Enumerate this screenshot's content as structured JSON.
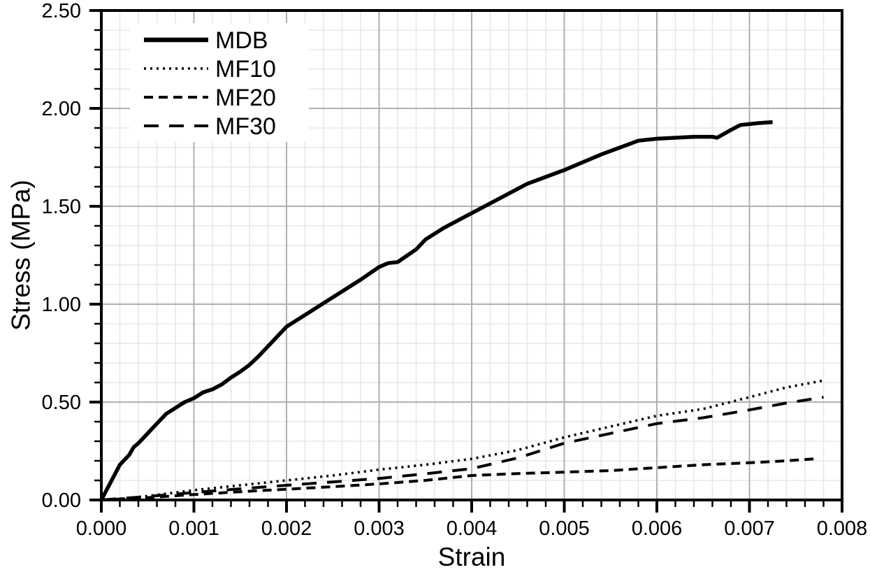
{
  "chart_data": {
    "type": "line",
    "title": "",
    "xlabel": "Strain",
    "ylabel": "Stress (MPa)",
    "xlim": [
      0,
      0.008
    ],
    "ylim": [
      0,
      2.5
    ],
    "x_ticks": [
      {
        "value": 0.0,
        "label": "0.000"
      },
      {
        "value": 0.001,
        "label": "0.001"
      },
      {
        "value": 0.002,
        "label": "0.002"
      },
      {
        "value": 0.003,
        "label": "0.003"
      },
      {
        "value": 0.004,
        "label": "0.004"
      },
      {
        "value": 0.005,
        "label": "0.005"
      },
      {
        "value": 0.006,
        "label": "0.006"
      },
      {
        "value": 0.007,
        "label": "0.007"
      },
      {
        "value": 0.008,
        "label": "0.008"
      }
    ],
    "y_ticks": [
      {
        "value": 0.0,
        "label": "0.00"
      },
      {
        "value": 0.5,
        "label": "0.50"
      },
      {
        "value": 1.0,
        "label": "1.00"
      },
      {
        "value": 1.5,
        "label": "1.50"
      },
      {
        "value": 2.0,
        "label": "2.00"
      },
      {
        "value": 2.5,
        "label": "2.50"
      }
    ],
    "x_minor_step": 0.0002,
    "y_minor_step": 0.1,
    "grid": true,
    "legend": {
      "position": "upper-left-inside",
      "entries": [
        "MDB",
        "MF10",
        "MF20",
        "MF30"
      ]
    },
    "colors": {
      "series": "#000000",
      "major_grid": "#b0b0b0",
      "minor_grid": "#e7e7e7",
      "axis": "#000000",
      "text": "#000000",
      "background": "#ffffff"
    },
    "series": [
      {
        "name": "MDB",
        "line_style": "solid",
        "width": 5.5,
        "points": [
          [
            0.0,
            0.0
          ],
          [
            0.0001,
            0.09
          ],
          [
            0.0002,
            0.18
          ],
          [
            0.0003,
            0.23
          ],
          [
            0.00035,
            0.27
          ],
          [
            0.0004,
            0.29
          ],
          [
            0.0005,
            0.34
          ],
          [
            0.0006,
            0.39
          ],
          [
            0.0007,
            0.44
          ],
          [
            0.0008,
            0.47
          ],
          [
            0.0009,
            0.5
          ],
          [
            0.001,
            0.52
          ],
          [
            0.0011,
            0.55
          ],
          [
            0.0012,
            0.565
          ],
          [
            0.0013,
            0.59
          ],
          [
            0.0014,
            0.625
          ],
          [
            0.0015,
            0.655
          ],
          [
            0.0016,
            0.69
          ],
          [
            0.0017,
            0.735
          ],
          [
            0.0018,
            0.785
          ],
          [
            0.0019,
            0.835
          ],
          [
            0.002,
            0.885
          ],
          [
            0.0022,
            0.945
          ],
          [
            0.0024,
            1.005
          ],
          [
            0.0026,
            1.065
          ],
          [
            0.0028,
            1.125
          ],
          [
            0.003,
            1.19
          ],
          [
            0.0031,
            1.21
          ],
          [
            0.0032,
            1.215
          ],
          [
            0.0034,
            1.28
          ],
          [
            0.0035,
            1.33
          ],
          [
            0.0037,
            1.39
          ],
          [
            0.0039,
            1.44
          ],
          [
            0.0041,
            1.49
          ],
          [
            0.0043,
            1.54
          ],
          [
            0.0045,
            1.59
          ],
          [
            0.0046,
            1.615
          ],
          [
            0.0048,
            1.65
          ],
          [
            0.005,
            1.685
          ],
          [
            0.0052,
            1.725
          ],
          [
            0.0054,
            1.765
          ],
          [
            0.0056,
            1.8
          ],
          [
            0.0058,
            1.835
          ],
          [
            0.006,
            1.845
          ],
          [
            0.0062,
            1.85
          ],
          [
            0.0064,
            1.855
          ],
          [
            0.0066,
            1.855
          ],
          [
            0.00665,
            1.85
          ],
          [
            0.0068,
            1.89
          ],
          [
            0.0069,
            1.915
          ],
          [
            0.0071,
            1.925
          ],
          [
            0.00725,
            1.93
          ]
        ]
      },
      {
        "name": "MF10",
        "line_style": "dotted",
        "width": 3.6,
        "points": [
          [
            0.0,
            0.0
          ],
          [
            0.0003,
            0.01
          ],
          [
            0.0005,
            0.02
          ],
          [
            0.001,
            0.05
          ],
          [
            0.0015,
            0.075
          ],
          [
            0.002,
            0.1
          ],
          [
            0.0025,
            0.125
          ],
          [
            0.003,
            0.155
          ],
          [
            0.0035,
            0.18
          ],
          [
            0.004,
            0.21
          ],
          [
            0.0045,
            0.255
          ],
          [
            0.005,
            0.32
          ],
          [
            0.0055,
            0.375
          ],
          [
            0.006,
            0.43
          ],
          [
            0.0065,
            0.465
          ],
          [
            0.007,
            0.525
          ],
          [
            0.0074,
            0.575
          ],
          [
            0.0078,
            0.61
          ]
        ]
      },
      {
        "name": "MF20",
        "line_style": "short-dash",
        "width": 4,
        "points": [
          [
            0.0,
            0.0
          ],
          [
            0.0005,
            0.012
          ],
          [
            0.001,
            0.028
          ],
          [
            0.0015,
            0.042
          ],
          [
            0.002,
            0.055
          ],
          [
            0.0025,
            0.068
          ],
          [
            0.003,
            0.082
          ],
          [
            0.0035,
            0.1
          ],
          [
            0.004,
            0.125
          ],
          [
            0.0045,
            0.135
          ],
          [
            0.005,
            0.142
          ],
          [
            0.0055,
            0.15
          ],
          [
            0.006,
            0.165
          ],
          [
            0.0065,
            0.18
          ],
          [
            0.007,
            0.19
          ],
          [
            0.0074,
            0.2
          ],
          [
            0.0077,
            0.21
          ]
        ]
      },
      {
        "name": "MF30",
        "line_style": "long-dash",
        "width": 4,
        "points": [
          [
            0.0,
            0.0
          ],
          [
            0.0005,
            0.018
          ],
          [
            0.001,
            0.038
          ],
          [
            0.0015,
            0.057
          ],
          [
            0.002,
            0.075
          ],
          [
            0.0025,
            0.092
          ],
          [
            0.003,
            0.11
          ],
          [
            0.0035,
            0.134
          ],
          [
            0.004,
            0.16
          ],
          [
            0.0045,
            0.215
          ],
          [
            0.005,
            0.29
          ],
          [
            0.0055,
            0.34
          ],
          [
            0.006,
            0.39
          ],
          [
            0.0065,
            0.42
          ],
          [
            0.007,
            0.46
          ],
          [
            0.0074,
            0.495
          ],
          [
            0.0078,
            0.525
          ]
        ]
      }
    ]
  }
}
